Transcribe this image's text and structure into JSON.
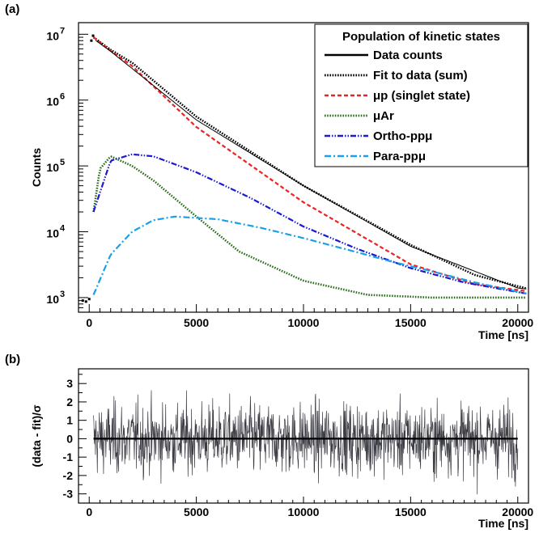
{
  "chart_data": [
    {
      "panel": "(a)",
      "type": "line",
      "ylabel": "Counts",
      "xlabel": "Time [ns]",
      "yscale": "log",
      "xlim": [
        -500,
        20500
      ],
      "ylim": [
        600,
        15000000
      ],
      "xticks": [
        0,
        5000,
        10000,
        15000,
        20000
      ],
      "ytick_labels": [
        {
          "value": 1000,
          "base": "10",
          "exp": "3"
        },
        {
          "value": 10000,
          "base": "10",
          "exp": "4"
        },
        {
          "value": 100000,
          "base": "10",
          "exp": "5"
        },
        {
          "value": 1000000,
          "base": "10",
          "exp": "6"
        },
        {
          "value": 10000000,
          "base": "10",
          "exp": "7"
        }
      ],
      "legend": {
        "title": "Population of kinetic states",
        "placement": "top-right",
        "entries": [
          {
            "label": "Data counts",
            "color": "#000000",
            "style": "solid"
          },
          {
            "label": "Fit to data (sum)",
            "color": "#000000",
            "style": "dotted"
          },
          {
            "label": "μp (singlet state)",
            "color": "#ee2222",
            "style": "dashed"
          },
          {
            "label": "μAr",
            "color": "#2b6e1e",
            "style": "dotted"
          },
          {
            "label": "Ortho-ppμ",
            "color": "#1a1ad0",
            "style": "dashdotdot"
          },
          {
            "label": "Para-ppμ",
            "color": "#1aa0e6",
            "style": "dashdot"
          }
        ]
      },
      "series": [
        {
          "name": "Data counts",
          "x": [
            0,
            200,
            1000,
            5000,
            10000,
            15000,
            20000,
            20400
          ],
          "y": [
            900,
            8500000,
            5500000,
            500000,
            50000,
            6000,
            1400,
            1350
          ]
        },
        {
          "name": "Fit to data (sum)",
          "x": [
            200,
            1000,
            2000,
            5000,
            10000,
            15000,
            18000,
            20400
          ],
          "y": [
            9000000,
            5800000,
            3700000,
            560000,
            50000,
            6300,
            2200,
            1380
          ]
        },
        {
          "name": "μp (singlet state)",
          "x": [
            200,
            1000,
            2000,
            5000,
            10000,
            15000,
            18000,
            20400
          ],
          "y": [
            9000000,
            5600000,
            3300000,
            390000,
            28000,
            3200,
            1600,
            1250
          ]
        },
        {
          "name": "μAr",
          "x": [
            200,
            500,
            1000,
            2000,
            3000,
            5000,
            7000,
            10000,
            13000,
            16000,
            20400
          ],
          "y": [
            20000,
            90000,
            140000,
            100000,
            60000,
            17000,
            5000,
            1800,
            1100,
            1000,
            1000
          ]
        },
        {
          "name": "Ortho-ppμ",
          "x": [
            200,
            1000,
            2000,
            3000,
            5000,
            7500,
            10000,
            12500,
            15000,
            17500,
            20400
          ],
          "y": [
            20000,
            120000,
            150000,
            140000,
            80000,
            33000,
            12000,
            5500,
            2800,
            1700,
            1150
          ]
        },
        {
          "name": "Para-ppμ",
          "x": [
            200,
            1000,
            2000,
            3000,
            4000,
            6000,
            8000,
            10000,
            12000,
            14000,
            16000,
            18000,
            20400
          ],
          "y": [
            1100,
            4500,
            10000,
            15000,
            17000,
            15500,
            11500,
            8000,
            5400,
            3600,
            2500,
            1700,
            1150
          ]
        }
      ]
    },
    {
      "panel": "(b)",
      "type": "line",
      "ylabel": "(data - fit)/σ",
      "xlabel": "Time [ns]",
      "xlim": [
        -500,
        20500
      ],
      "ylim": [
        -3.5,
        3.8
      ],
      "xticks": [
        0,
        5000,
        10000,
        15000,
        20000
      ],
      "yticks": [
        3,
        2,
        1,
        0,
        -1,
        -2,
        -3
      ],
      "residual_range": [
        -3.3,
        3.5
      ],
      "series": [
        {
          "name": "",
          "x": [
            200,
            20000
          ],
          "y": [
            0,
            0
          ],
          "color": "#000000"
        }
      ]
    }
  ]
}
